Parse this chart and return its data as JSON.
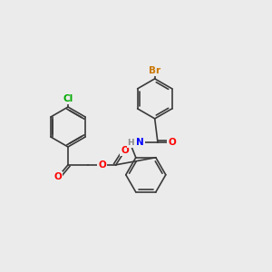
{
  "background_color": "#ebebeb",
  "bond_color": "#3a3a3a",
  "atom_colors": {
    "Cl": "#00aa00",
    "Br": "#cc7700",
    "N": "#0000ff",
    "O": "#ff0000",
    "H": "#888888"
  },
  "font_size": 7.5,
  "line_width": 1.2
}
